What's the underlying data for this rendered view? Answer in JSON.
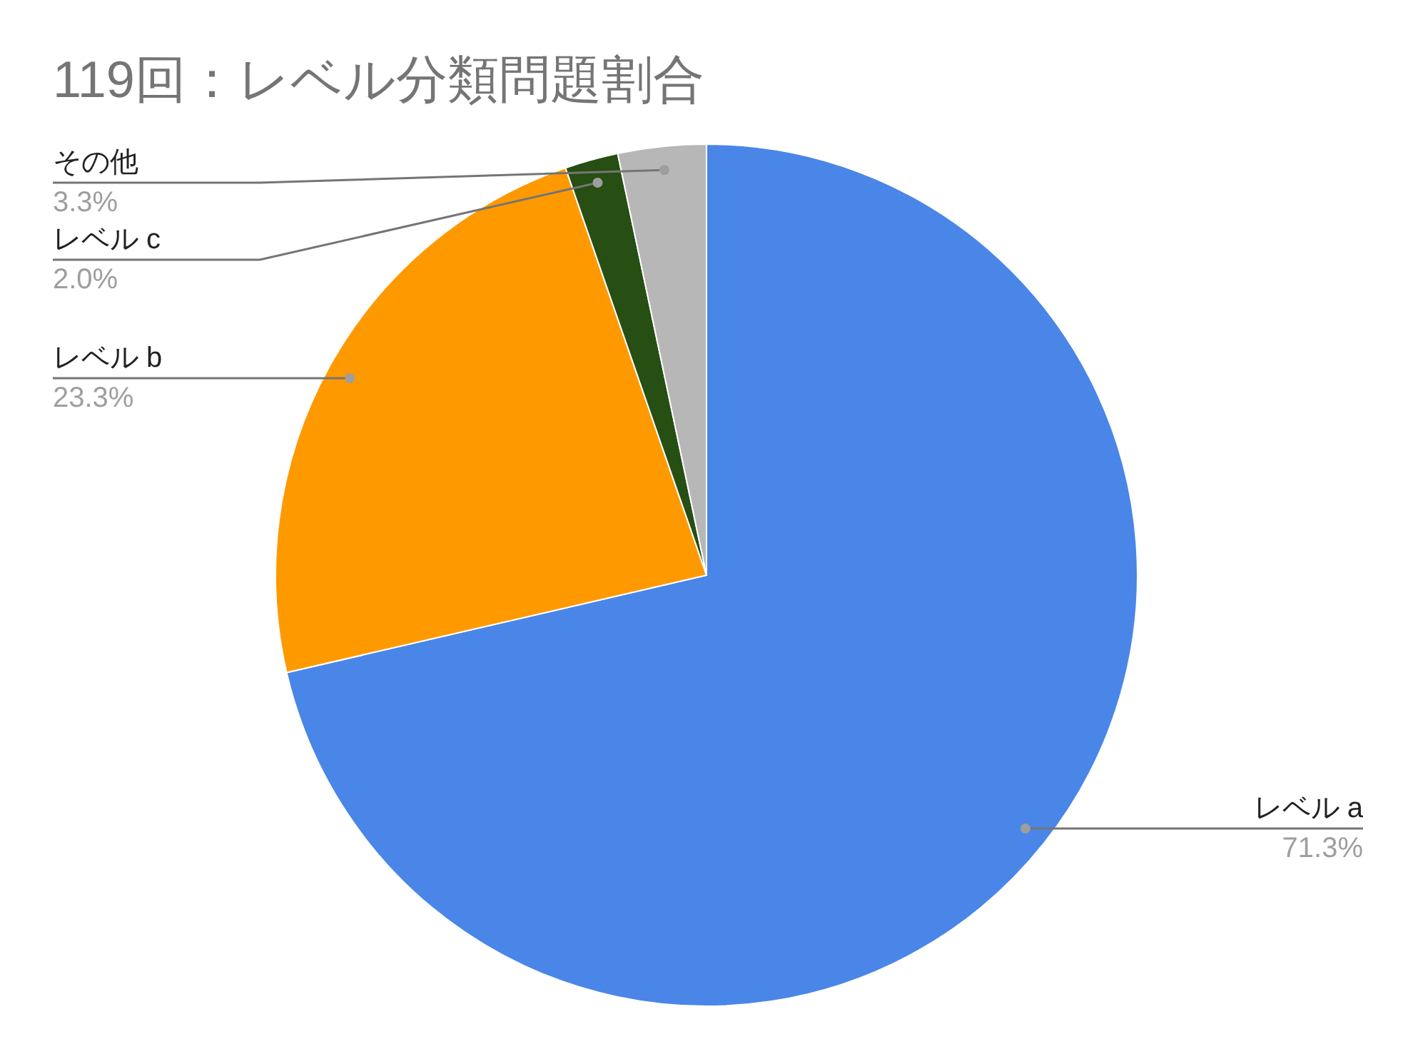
{
  "chart_data": {
    "type": "pie",
    "title": "119回：レベル分類問題割合",
    "categories": [
      "レベル a",
      "レベル b",
      "レベル c",
      "その他"
    ],
    "values": [
      71.3,
      23.3,
      2.0,
      3.3
    ],
    "value_labels": [
      "71.3%",
      "23.3%",
      "2.0%",
      "3.3%"
    ],
    "colors": [
      "#4a86e8",
      "#ff9900",
      "#274e13",
      "#b7b7b7"
    ],
    "legend": false
  }
}
